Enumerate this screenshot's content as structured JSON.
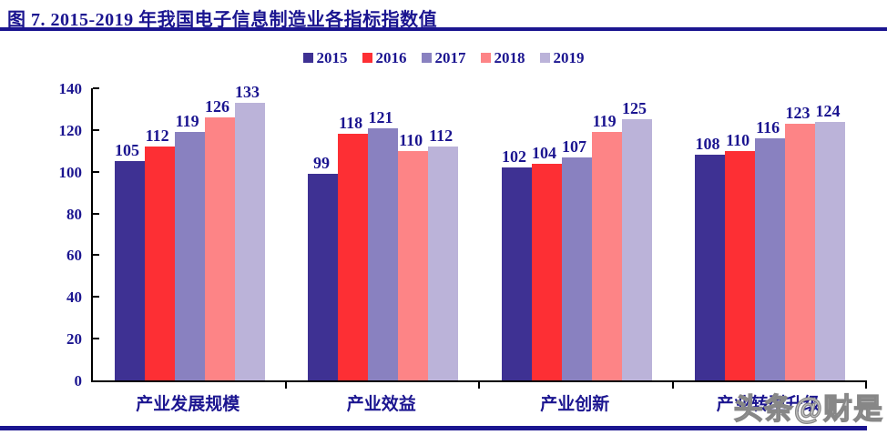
{
  "page": {
    "title": "图 7. 2015-2019 年我国电子信息制造业各指标指数值",
    "watermark": "头条@财是"
  },
  "colors": {
    "navy_text": "#1b1590",
    "title_rule": "#1b1590",
    "bottom_rule": "#1b1590",
    "axis": "#000000",
    "watermark_gray": "#878787"
  },
  "chart_data": {
    "type": "bar",
    "title": "图 7. 2015-2019 年我国电子信息制造业各指标指数值",
    "categories": [
      "产业发展规模",
      "产业效益",
      "产业创新",
      "产业转型升级"
    ],
    "series": [
      {
        "name": "2015",
        "color": "#3e3193",
        "values": [
          105,
          99,
          102,
          108
        ]
      },
      {
        "name": "2016",
        "color": "#fd2f34",
        "values": [
          112,
          118,
          104,
          110
        ]
      },
      {
        "name": "2017",
        "color": "#8981c0",
        "values": [
          119,
          121,
          107,
          116
        ]
      },
      {
        "name": "2018",
        "color": "#fd8486",
        "values": [
          126,
          110,
          119,
          123
        ]
      },
      {
        "name": "2019",
        "color": "#bbb3d9",
        "values": [
          133,
          112,
          125,
          124
        ]
      }
    ],
    "xlabel": "",
    "ylabel": "",
    "ylim": [
      0,
      140
    ],
    "yticks": [
      0,
      20,
      40,
      60,
      80,
      100,
      120,
      140
    ],
    "legend_position": "top",
    "grid": false,
    "value_labels": true
  }
}
